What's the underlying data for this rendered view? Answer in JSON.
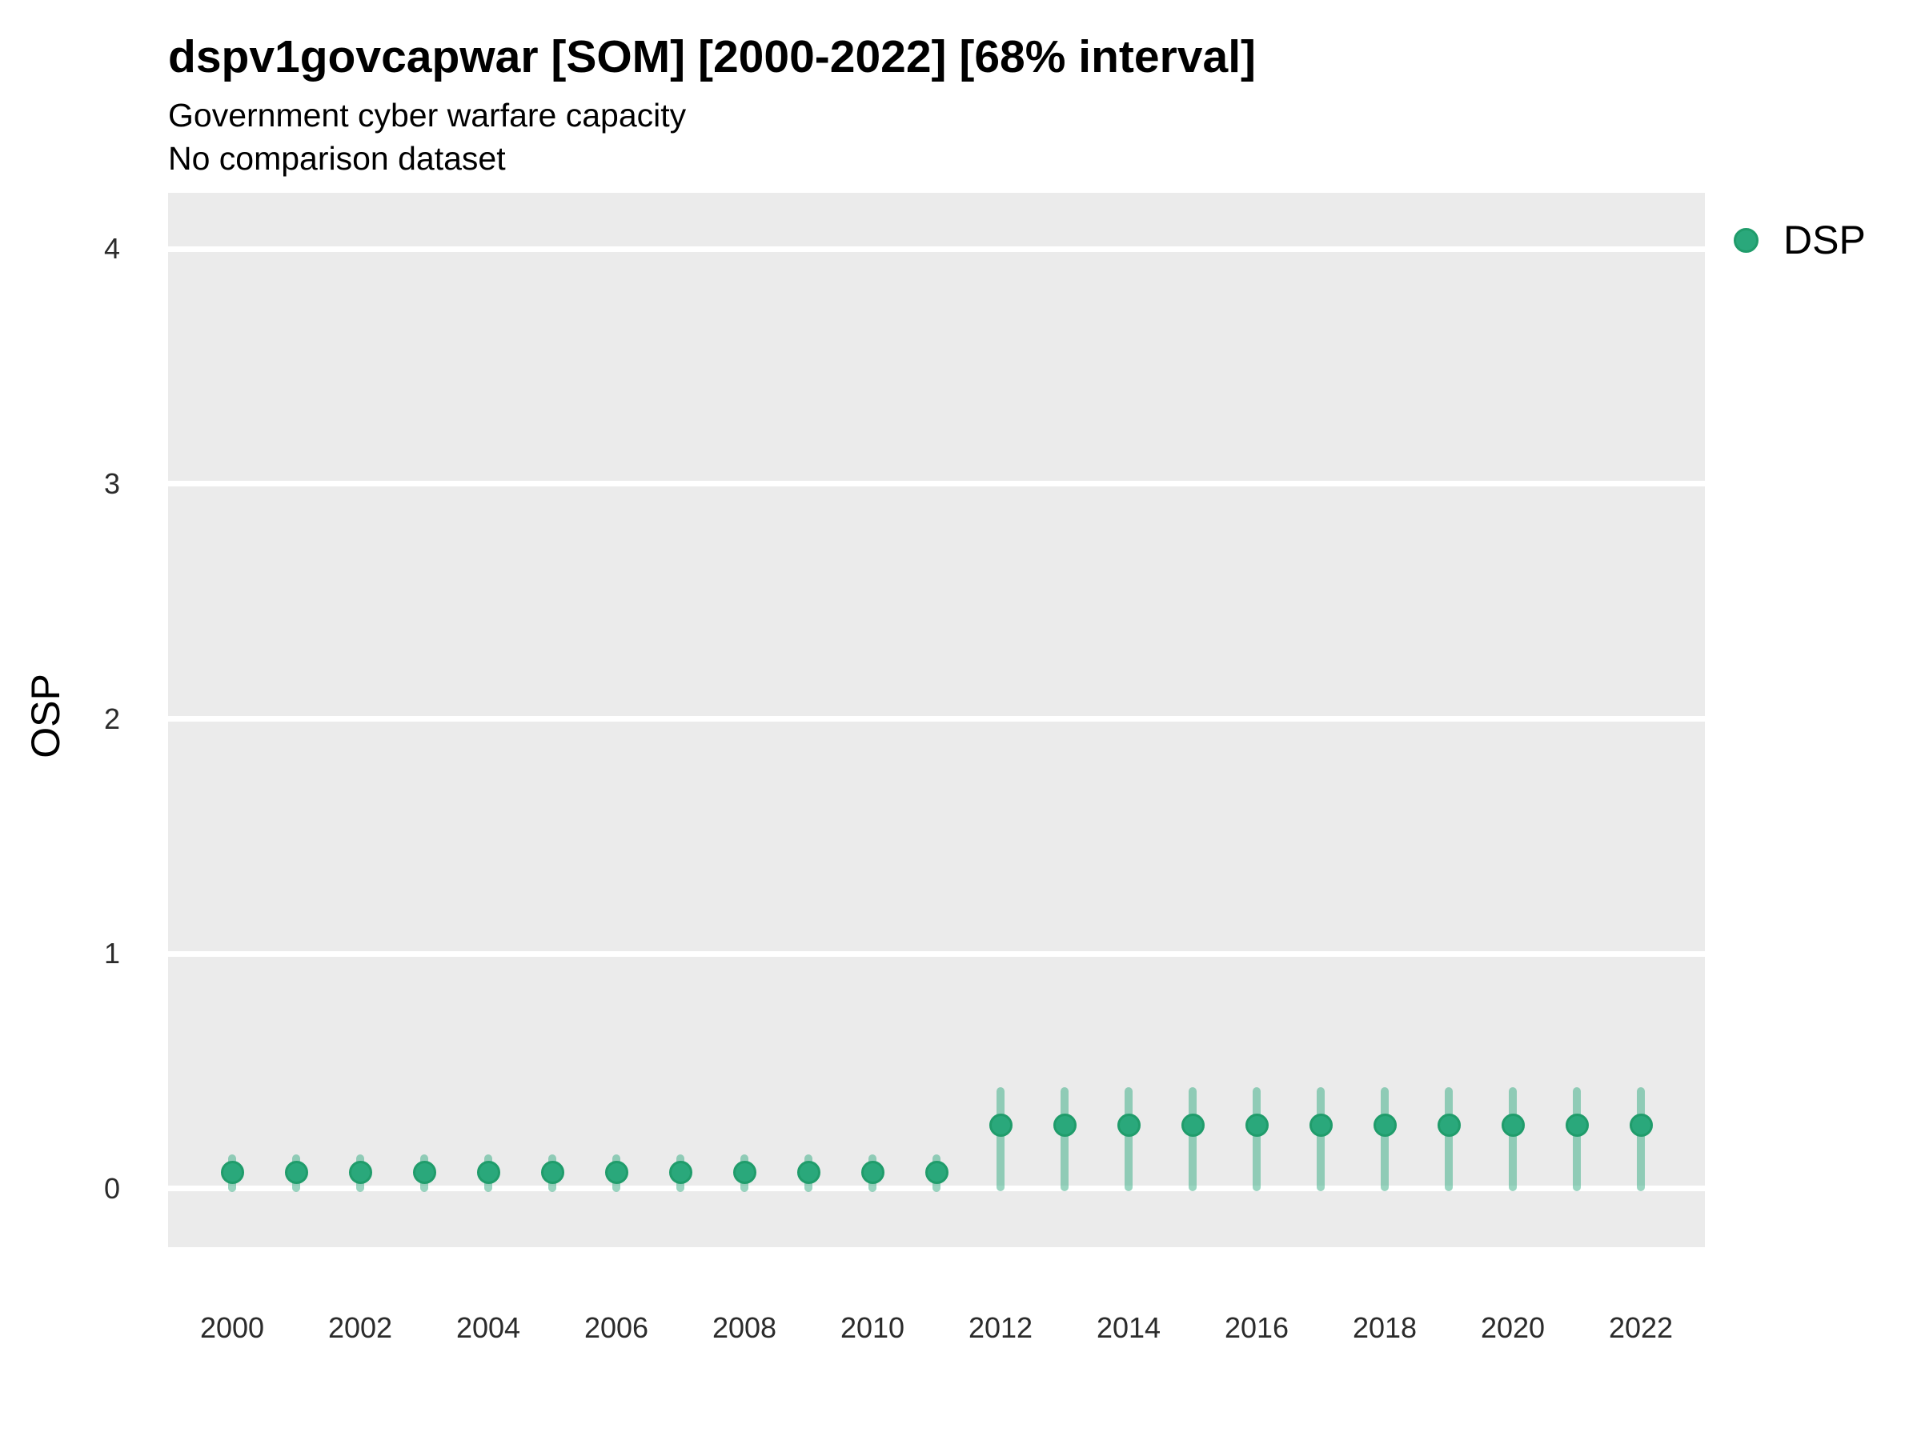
{
  "header": {
    "title": "dspv1govcapwar [SOM] [2000-2022] [68% interval]",
    "subtitle": "Government cyber warfare capacity",
    "comparison_note": "No comparison dataset"
  },
  "legend": {
    "items": [
      {
        "label": "DSP",
        "color": "#2aa87b",
        "border_color": "#209c6b"
      }
    ]
  },
  "chart_data": {
    "type": "scatter",
    "subtype": "pointrange",
    "title": "dspv1govcapwar [SOM] [2000-2022] [68% interval]",
    "subtitle": "Government cyber warfare capacity",
    "note": "No comparison dataset",
    "xlabel": "",
    "ylabel": "OSP",
    "interval_level": "68%",
    "xlim": [
      1999,
      2023
    ],
    "ylim": [
      -0.25,
      4.24
    ],
    "x_ticks": [
      2000,
      2002,
      2004,
      2006,
      2008,
      2010,
      2012,
      2014,
      2016,
      2018,
      2020,
      2022
    ],
    "y_ticks": [
      0,
      1,
      2,
      3,
      4
    ],
    "grid": "major-white-on-grey",
    "legend_position": "right",
    "panel_bg": "#ebebeb",
    "grid_color": "#ffffff",
    "point_color": "#2aa87b",
    "point_border_color": "#209c6b",
    "interval_color": "rgba(42,168,123,0.48)",
    "series": [
      {
        "name": "DSP",
        "points": [
          {
            "year": 2000,
            "median": 0.07,
            "lower": -0.015,
            "upper": 0.145
          },
          {
            "year": 2001,
            "median": 0.07,
            "lower": -0.015,
            "upper": 0.145
          },
          {
            "year": 2002,
            "median": 0.07,
            "lower": -0.015,
            "upper": 0.145
          },
          {
            "year": 2003,
            "median": 0.07,
            "lower": -0.015,
            "upper": 0.145
          },
          {
            "year": 2004,
            "median": 0.07,
            "lower": -0.015,
            "upper": 0.145
          },
          {
            "year": 2005,
            "median": 0.07,
            "lower": -0.015,
            "upper": 0.145
          },
          {
            "year": 2006,
            "median": 0.07,
            "lower": -0.015,
            "upper": 0.145
          },
          {
            "year": 2007,
            "median": 0.07,
            "lower": -0.015,
            "upper": 0.145
          },
          {
            "year": 2008,
            "median": 0.07,
            "lower": -0.015,
            "upper": 0.145
          },
          {
            "year": 2009,
            "median": 0.07,
            "lower": -0.015,
            "upper": 0.145
          },
          {
            "year": 2010,
            "median": 0.07,
            "lower": -0.015,
            "upper": 0.145
          },
          {
            "year": 2011,
            "median": 0.07,
            "lower": -0.015,
            "upper": 0.145
          },
          {
            "year": 2012,
            "median": 0.27,
            "lower": -0.01,
            "upper": 0.43
          },
          {
            "year": 2013,
            "median": 0.27,
            "lower": -0.01,
            "upper": 0.43
          },
          {
            "year": 2014,
            "median": 0.27,
            "lower": -0.01,
            "upper": 0.43
          },
          {
            "year": 2015,
            "median": 0.27,
            "lower": -0.01,
            "upper": 0.43
          },
          {
            "year": 2016,
            "median": 0.27,
            "lower": -0.01,
            "upper": 0.43
          },
          {
            "year": 2017,
            "median": 0.27,
            "lower": -0.01,
            "upper": 0.43
          },
          {
            "year": 2018,
            "median": 0.27,
            "lower": -0.01,
            "upper": 0.43
          },
          {
            "year": 2019,
            "median": 0.27,
            "lower": -0.01,
            "upper": 0.43
          },
          {
            "year": 2020,
            "median": 0.27,
            "lower": -0.01,
            "upper": 0.43
          },
          {
            "year": 2021,
            "median": 0.27,
            "lower": -0.01,
            "upper": 0.43
          },
          {
            "year": 2022,
            "median": 0.27,
            "lower": -0.01,
            "upper": 0.43
          }
        ]
      }
    ]
  }
}
